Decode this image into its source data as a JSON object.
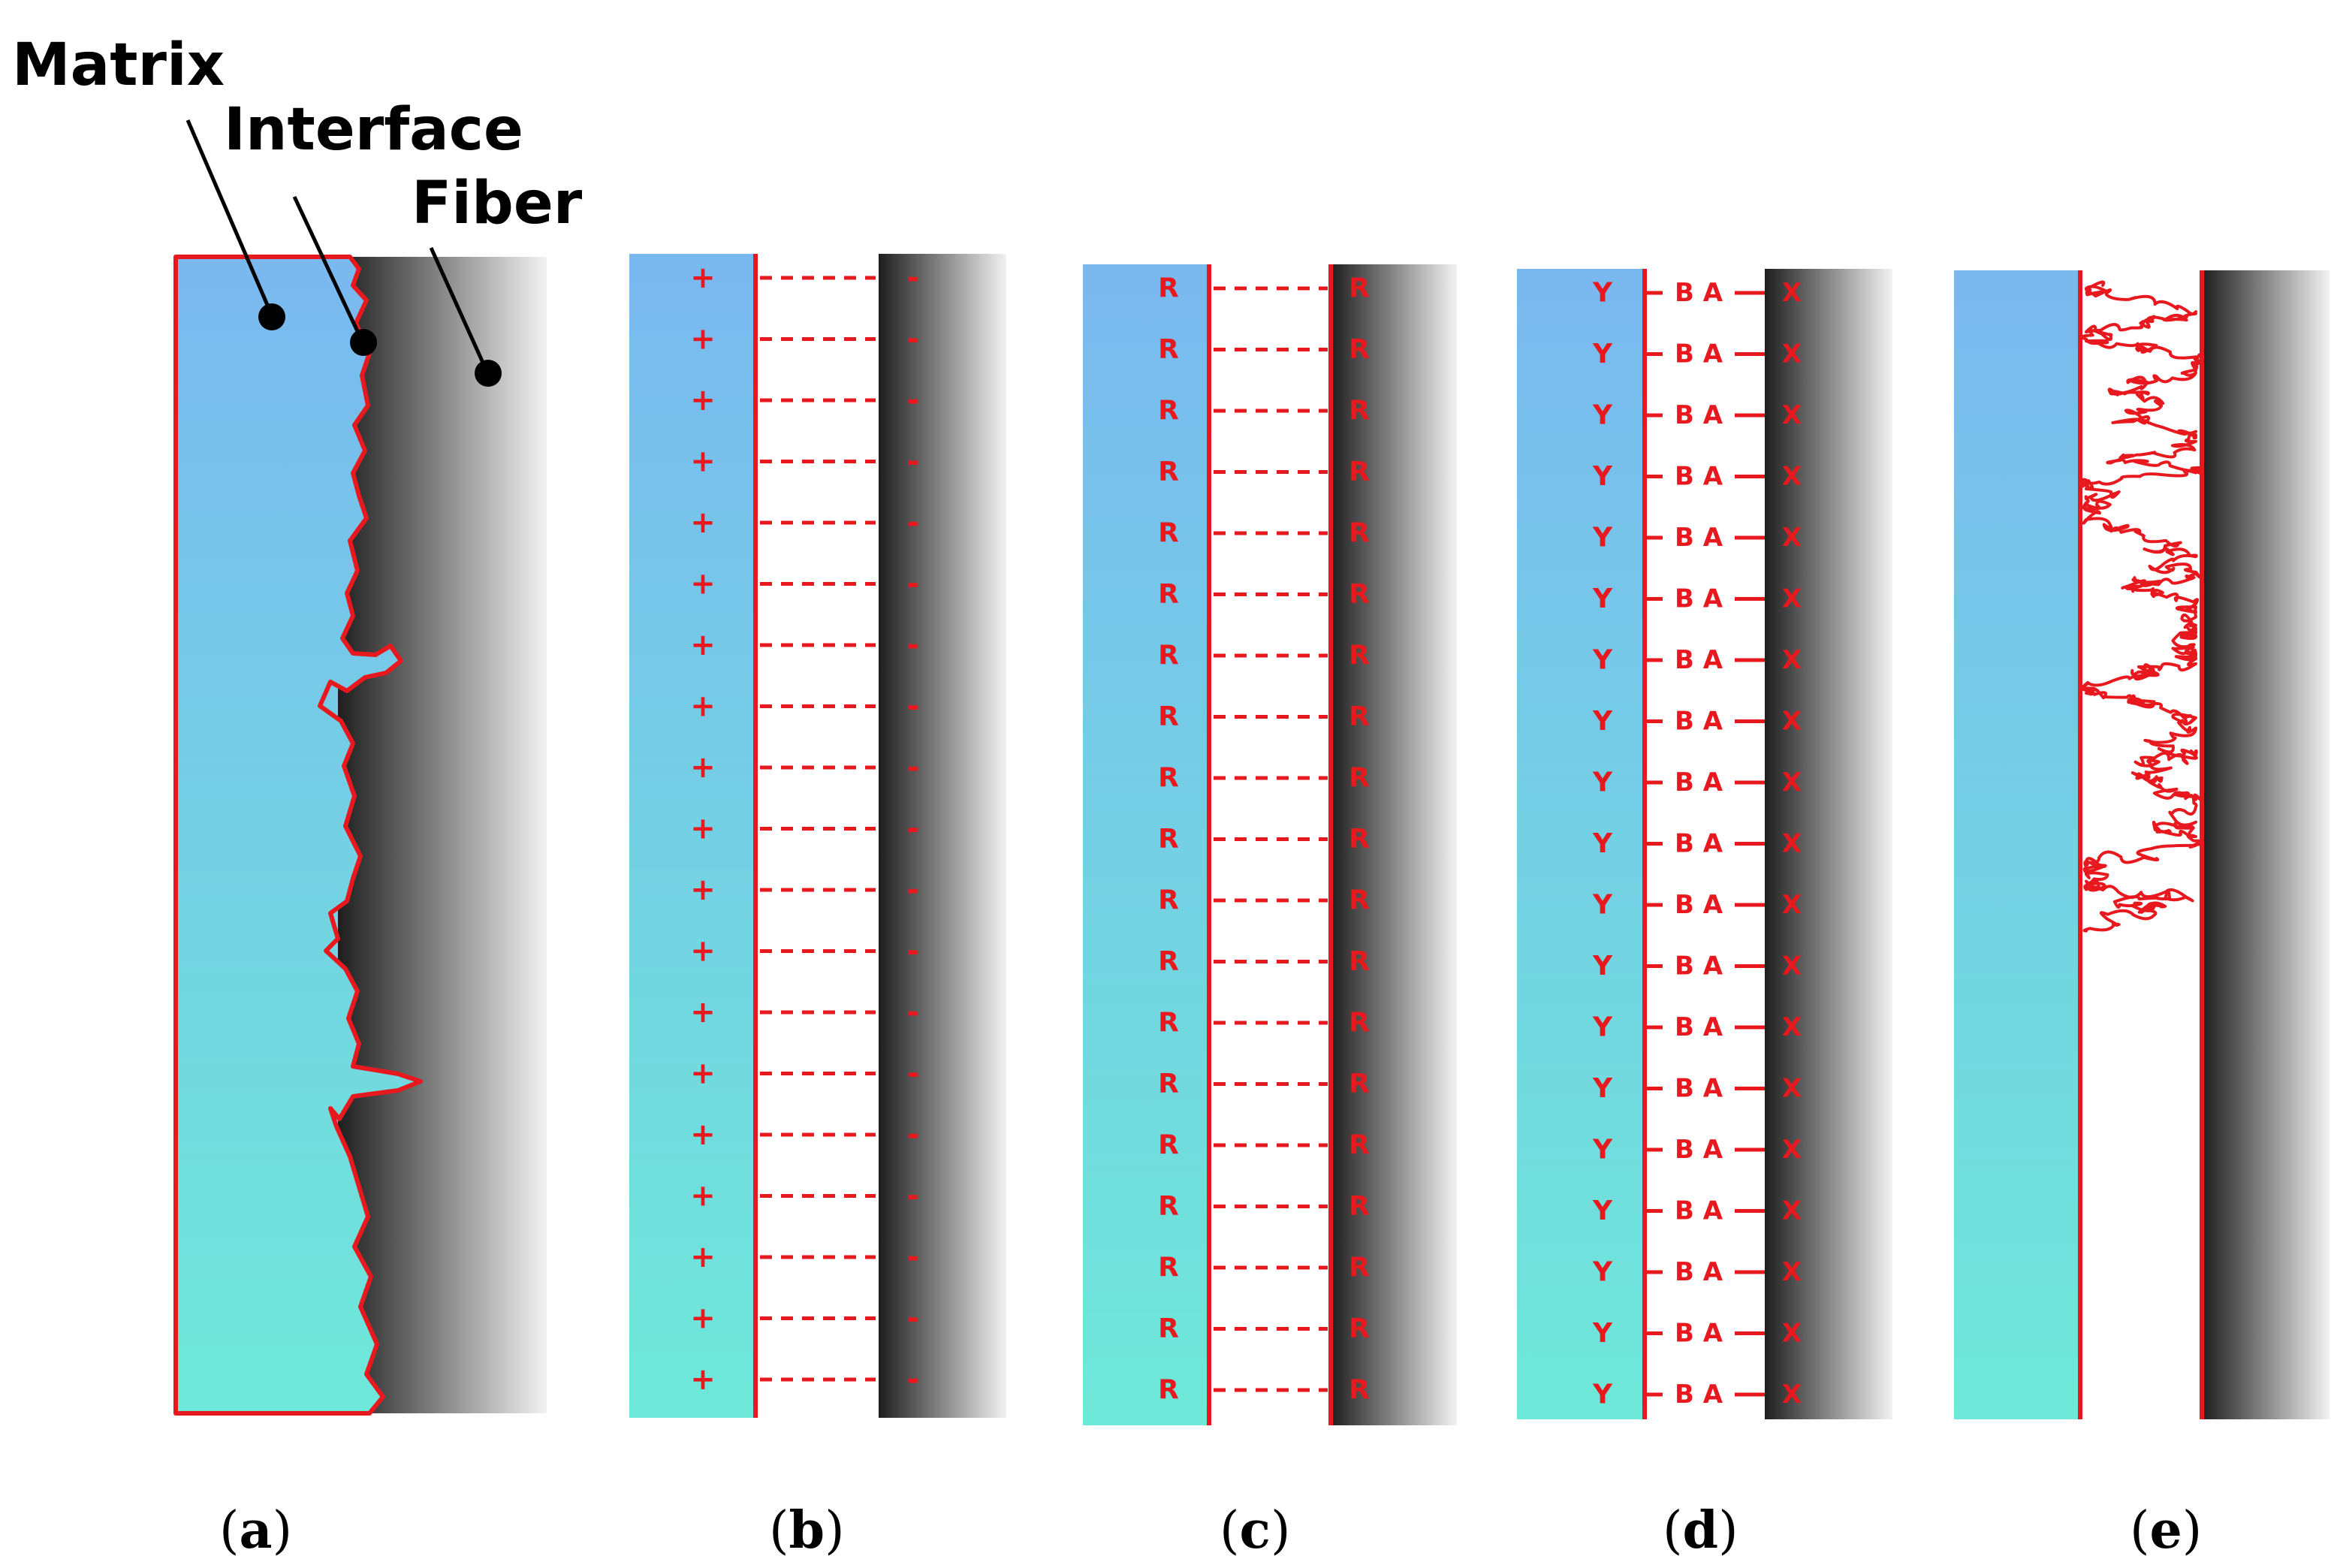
{
  "labels": {
    "matrix": "Matrix",
    "interface": "Interface",
    "fiber": "Fiber"
  },
  "captions": [
    "a",
    "b",
    "c",
    "d",
    "e"
  ],
  "panels": {
    "b": {
      "matrix_symbol": "+",
      "fiber_symbol": "-"
    },
    "c": {
      "matrix_symbol": "R",
      "fiber_symbol": "R"
    },
    "d": {
      "matrix_symbol": "Y",
      "bond_symbol": "B A",
      "fiber_symbol": "X"
    }
  },
  "colors": {
    "matrix_top": "#7ab8f0",
    "matrix_bottom": "#6ee8d8",
    "fiber_dark": "#1e1e1e",
    "fiber_light": "#f2f2f2",
    "interface": "#e8191e"
  }
}
